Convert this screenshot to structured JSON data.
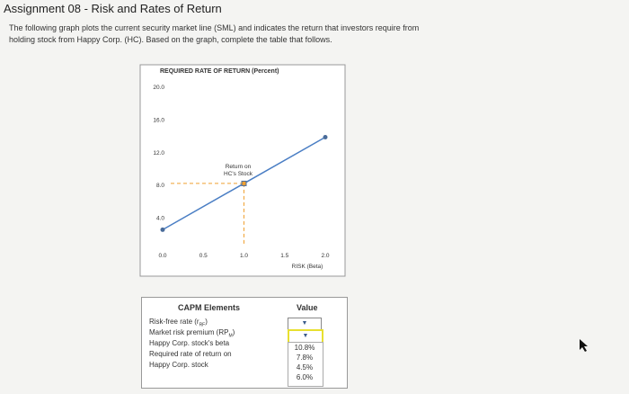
{
  "header": {
    "title": "Assignment 08 - Risk and Rates of Return"
  },
  "instructions": [
    "The following graph plots the current security market line (SML) and indicates the return that investors require from",
    "holding stock from Happy Corp. (HC). Based on the graph, complete the table that follows."
  ],
  "chart_data": {
    "type": "line",
    "title": "REQUIRED RATE OF RETURN (Percent)",
    "x_label": "RISK (Beta)",
    "annotation": [
      "Return on",
      "HC's Stock"
    ],
    "x": [
      0,
      1.0,
      2.0
    ],
    "values": [
      2.6,
      8.25,
      13.9
    ],
    "color": "#4a7ec4",
    "marker_color": "#4a6c9a",
    "highlight_color": "#f0a030",
    "xlim": [
      0,
      2.0
    ],
    "ylim": [
      0,
      20
    ],
    "xticks": [
      {
        "value": 0,
        "label": "0.0"
      },
      {
        "value": 0.5,
        "label": "0.5"
      },
      {
        "value": 1,
        "label": "1.0"
      },
      {
        "value": 1.5,
        "label": "1.5"
      },
      {
        "value": 2,
        "label": "2.0"
      }
    ],
    "yticks": [
      {
        "value": 4,
        "label": "4.0"
      },
      {
        "value": 8,
        "label": "8.0"
      },
      {
        "value": 12,
        "label": "12.0"
      },
      {
        "value": 16,
        "label": "16.0"
      },
      {
        "value": 20,
        "label": "20.0"
      }
    ]
  },
  "table": {
    "header": [
      "CAPM Elements",
      "Value"
    ],
    "rows": [
      {
        "text": "Risk-free rate (r",
        "sub": "RF",
        "end": ")"
      },
      {
        "text": "Market risk premium (RP",
        "sub": "M",
        "end": ")"
      },
      {
        "text": "Happy Corp. stock's beta"
      },
      {
        "text": "Required rate of return on"
      },
      {
        "text": "Happy Corp. stock"
      }
    ],
    "options": [
      "10.8%",
      "7.8%",
      "4.5%",
      "6.0%"
    ]
  }
}
